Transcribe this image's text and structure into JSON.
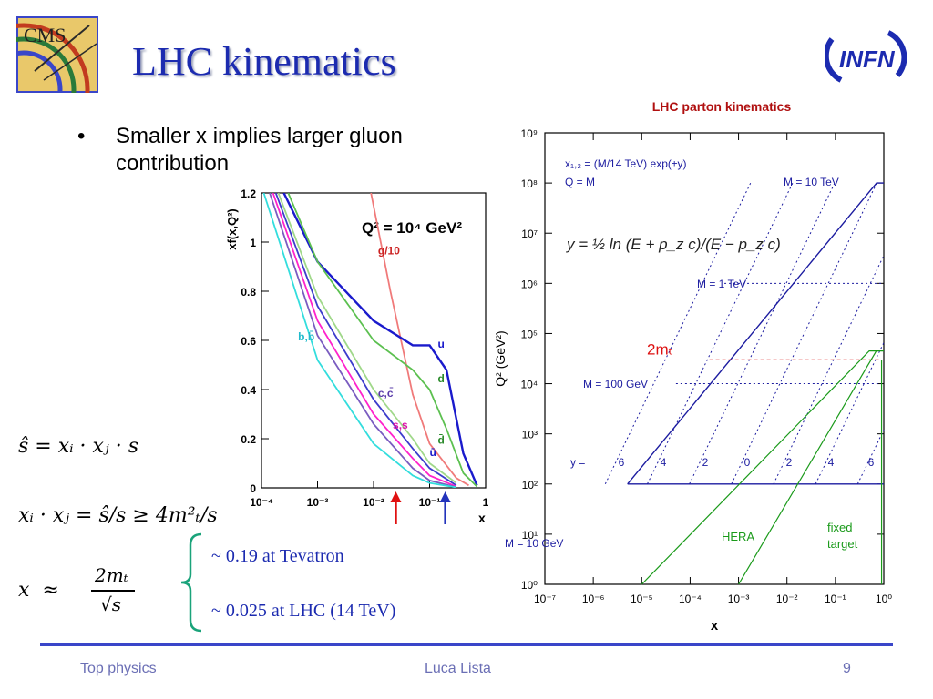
{
  "slide": {
    "title": "LHC kinematics",
    "bullet": "Smaller x implies larger gluon contribution",
    "footer_left": "Top physics",
    "footer_center": "Luca Lista",
    "footer_page": "9",
    "logo_cms": "CMS",
    "logo_infn": "INFN"
  },
  "formulas": {
    "shat": "ŝ = xᵢ · xⱼ · s",
    "product": "xᵢ · xⱼ = ŝ/s ≥ 4m²ₜ/s",
    "x_lhs": "x  ≈",
    "x_num": "2mₜ",
    "x_den": "√s"
  },
  "annotations": {
    "tevatron": "~ 0.19 at Tevatron",
    "lhc": "~ 0.025 at LHC (14 TeV)"
  },
  "colors": {
    "title": "#1c2bb0",
    "footer_line": "#3a46c9",
    "brace": "#1aa37a",
    "arrow_red": "#e01010",
    "arrow_blue": "#2233bb"
  },
  "chart_data": [
    {
      "type": "line",
      "title": "Q² = 10⁴ GeV²",
      "ylabel": "xf(x,Q²)",
      "xlabel": "x",
      "xscale": "log",
      "xlim": [
        0.0001,
        1
      ],
      "ylim": [
        0,
        1.2
      ],
      "x_ticks": [
        "10⁻⁴",
        "10⁻³",
        "10⁻²",
        "10⁻¹",
        "1"
      ],
      "y_ticks": [
        "0",
        "0.2",
        "0.4",
        "0.6",
        "0.8",
        "1",
        "1.2"
      ],
      "series": [
        {
          "name": "g/10",
          "color": "#f07a7a",
          "points": [
            [
              0.009,
              1.2
            ],
            [
              0.02,
              0.8
            ],
            [
              0.05,
              0.38
            ],
            [
              0.1,
              0.18
            ],
            [
              0.3,
              0.04
            ],
            [
              0.5,
              0.01
            ]
          ]
        },
        {
          "name": "u",
          "color": "#1a1acc",
          "points": [
            [
              0.00025,
              1.2
            ],
            [
              0.001,
              0.92
            ],
            [
              0.01,
              0.68
            ],
            [
              0.05,
              0.58
            ],
            [
              0.1,
              0.58
            ],
            [
              0.2,
              0.48
            ],
            [
              0.4,
              0.14
            ],
            [
              0.7,
              0.01
            ]
          ]
        },
        {
          "name": "d",
          "color": "#5cc050",
          "points": [
            [
              0.0003,
              1.2
            ],
            [
              0.001,
              0.92
            ],
            [
              0.01,
              0.6
            ],
            [
              0.05,
              0.48
            ],
            [
              0.1,
              0.4
            ],
            [
              0.2,
              0.24
            ],
            [
              0.4,
              0.06
            ],
            [
              0.7,
              0.005
            ]
          ]
        },
        {
          "name": "d̄",
          "color": "#a0d88a",
          "points": [
            [
              0.0002,
              1.2
            ],
            [
              0.001,
              0.78
            ],
            [
              0.01,
              0.4
            ],
            [
              0.05,
              0.2
            ],
            [
              0.1,
              0.1
            ],
            [
              0.3,
              0.02
            ]
          ]
        },
        {
          "name": "ū",
          "color": "#3c3ccc",
          "points": [
            [
              0.00018,
              1.2
            ],
            [
              0.001,
              0.74
            ],
            [
              0.01,
              0.36
            ],
            [
              0.05,
              0.16
            ],
            [
              0.1,
              0.08
            ],
            [
              0.3,
              0.01
            ]
          ]
        },
        {
          "name": "s,s̄",
          "color": "#ff22cc",
          "points": [
            [
              0.00016,
              1.2
            ],
            [
              0.001,
              0.68
            ],
            [
              0.01,
              0.3
            ],
            [
              0.05,
              0.12
            ],
            [
              0.1,
              0.05
            ],
            [
              0.3,
              0.005
            ]
          ]
        },
        {
          "name": "c,c̄",
          "color": "#7a5cc0",
          "points": [
            [
              0.00014,
              1.2
            ],
            [
              0.001,
              0.62
            ],
            [
              0.01,
              0.26
            ],
            [
              0.05,
              0.08
            ],
            [
              0.1,
              0.03
            ],
            [
              0.3,
              0.003
            ]
          ]
        },
        {
          "name": "b,b̄",
          "color": "#33dddd",
          "points": [
            [
              0.00011,
              1.2
            ],
            [
              0.001,
              0.52
            ],
            [
              0.01,
              0.18
            ],
            [
              0.05,
              0.05
            ],
            [
              0.1,
              0.02
            ],
            [
              0.3,
              0.002
            ]
          ]
        }
      ],
      "markers": [
        {
          "x": 0.025,
          "color": "red",
          "label": "LHC"
        },
        {
          "x": 0.19,
          "color": "blue",
          "label": "Tevatron"
        }
      ]
    },
    {
      "type": "line",
      "title": "LHC parton kinematics",
      "xlabel": "x",
      "ylabel": "Q²   (GeV²)",
      "xscale": "log",
      "yscale": "log",
      "xlim": [
        1e-07,
        1
      ],
      "ylim": [
        1,
        1000000000.0
      ],
      "x_ticks": [
        "10⁻⁷",
        "10⁻⁶",
        "10⁻⁵",
        "10⁻⁴",
        "10⁻³",
        "10⁻²",
        "10⁻¹",
        "10⁰"
      ],
      "y_ticks": [
        "10⁰",
        "10¹",
        "10²",
        "10³",
        "10⁴",
        "10⁵",
        "10⁶",
        "10⁷",
        "10⁸",
        "10⁹"
      ],
      "legend_text": [
        "x₁,₂ = (M/14 TeV) exp(±y)",
        "Q = M"
      ],
      "rapidity_formula": "y = ½ ln (E + p_z c)/(E − p_z c)",
      "mass_labels": [
        "M = 10 TeV",
        "M = 1 TeV",
        "M = 100 GeV",
        "M = 10 GeV"
      ],
      "rapidity_label": "y =",
      "rapidity_values": [
        "6",
        "4",
        "2",
        "0",
        "2",
        "4",
        "6"
      ],
      "region_labels": [
        "HERA",
        "fixed target"
      ],
      "threshold_label": "2mₜ",
      "envelope": [
        [
          5.1e-06,
          100
        ],
        [
          0.71,
          100000000.0
        ],
        [
          1,
          100000000.0
        ]
      ],
      "mass_lines_Q2": [
        100000000.0,
        1000000.0,
        10000.0,
        100
      ],
      "hera_boundary": [
        [
          1e-05,
          1
        ],
        [
          0.5,
          45000
        ],
        [
          1,
          45000
        ]
      ],
      "fixed_target_boundary": [
        [
          0.001,
          1
        ],
        [
          0.7,
          45000
        ]
      ],
      "threshold_Q2": 30000
    }
  ]
}
